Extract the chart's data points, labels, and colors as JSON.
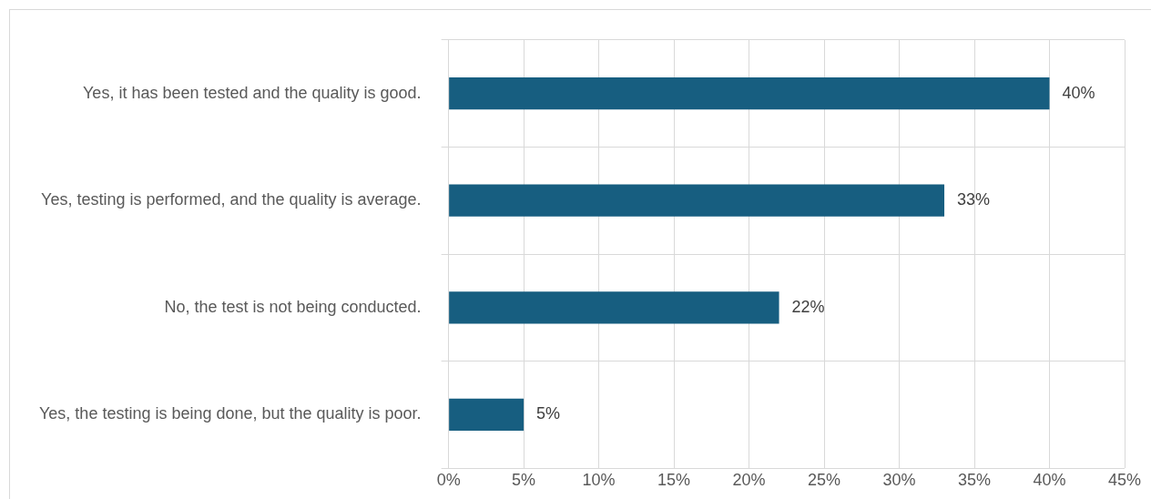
{
  "chart_data": {
    "type": "bar",
    "orientation": "horizontal",
    "categories": [
      "Yes, it has been tested and the quality is good.",
      "Yes, testing is performed, and the quality is average.",
      "No, the test is not being conducted.",
      "Yes, the testing is being done, but the quality is poor."
    ],
    "values": [
      40,
      33,
      22,
      5
    ],
    "color": "#175e80",
    "value_labels": [
      "40%",
      "33%",
      "22%",
      "5%"
    ],
    "xlim": [
      0,
      45
    ],
    "xticks": [
      {
        "value": 0,
        "label": "0%"
      },
      {
        "value": 5,
        "label": "5%"
      },
      {
        "value": 10,
        "label": "10%"
      },
      {
        "value": 15,
        "label": "15%"
      },
      {
        "value": 20,
        "label": "20%"
      },
      {
        "value": 25,
        "label": "25%"
      },
      {
        "value": 30,
        "label": "30%"
      },
      {
        "value": 35,
        "label": "35%"
      },
      {
        "value": 40,
        "label": "40%"
      },
      {
        "value": 45,
        "label": "45%"
      }
    ],
    "grid": true
  }
}
